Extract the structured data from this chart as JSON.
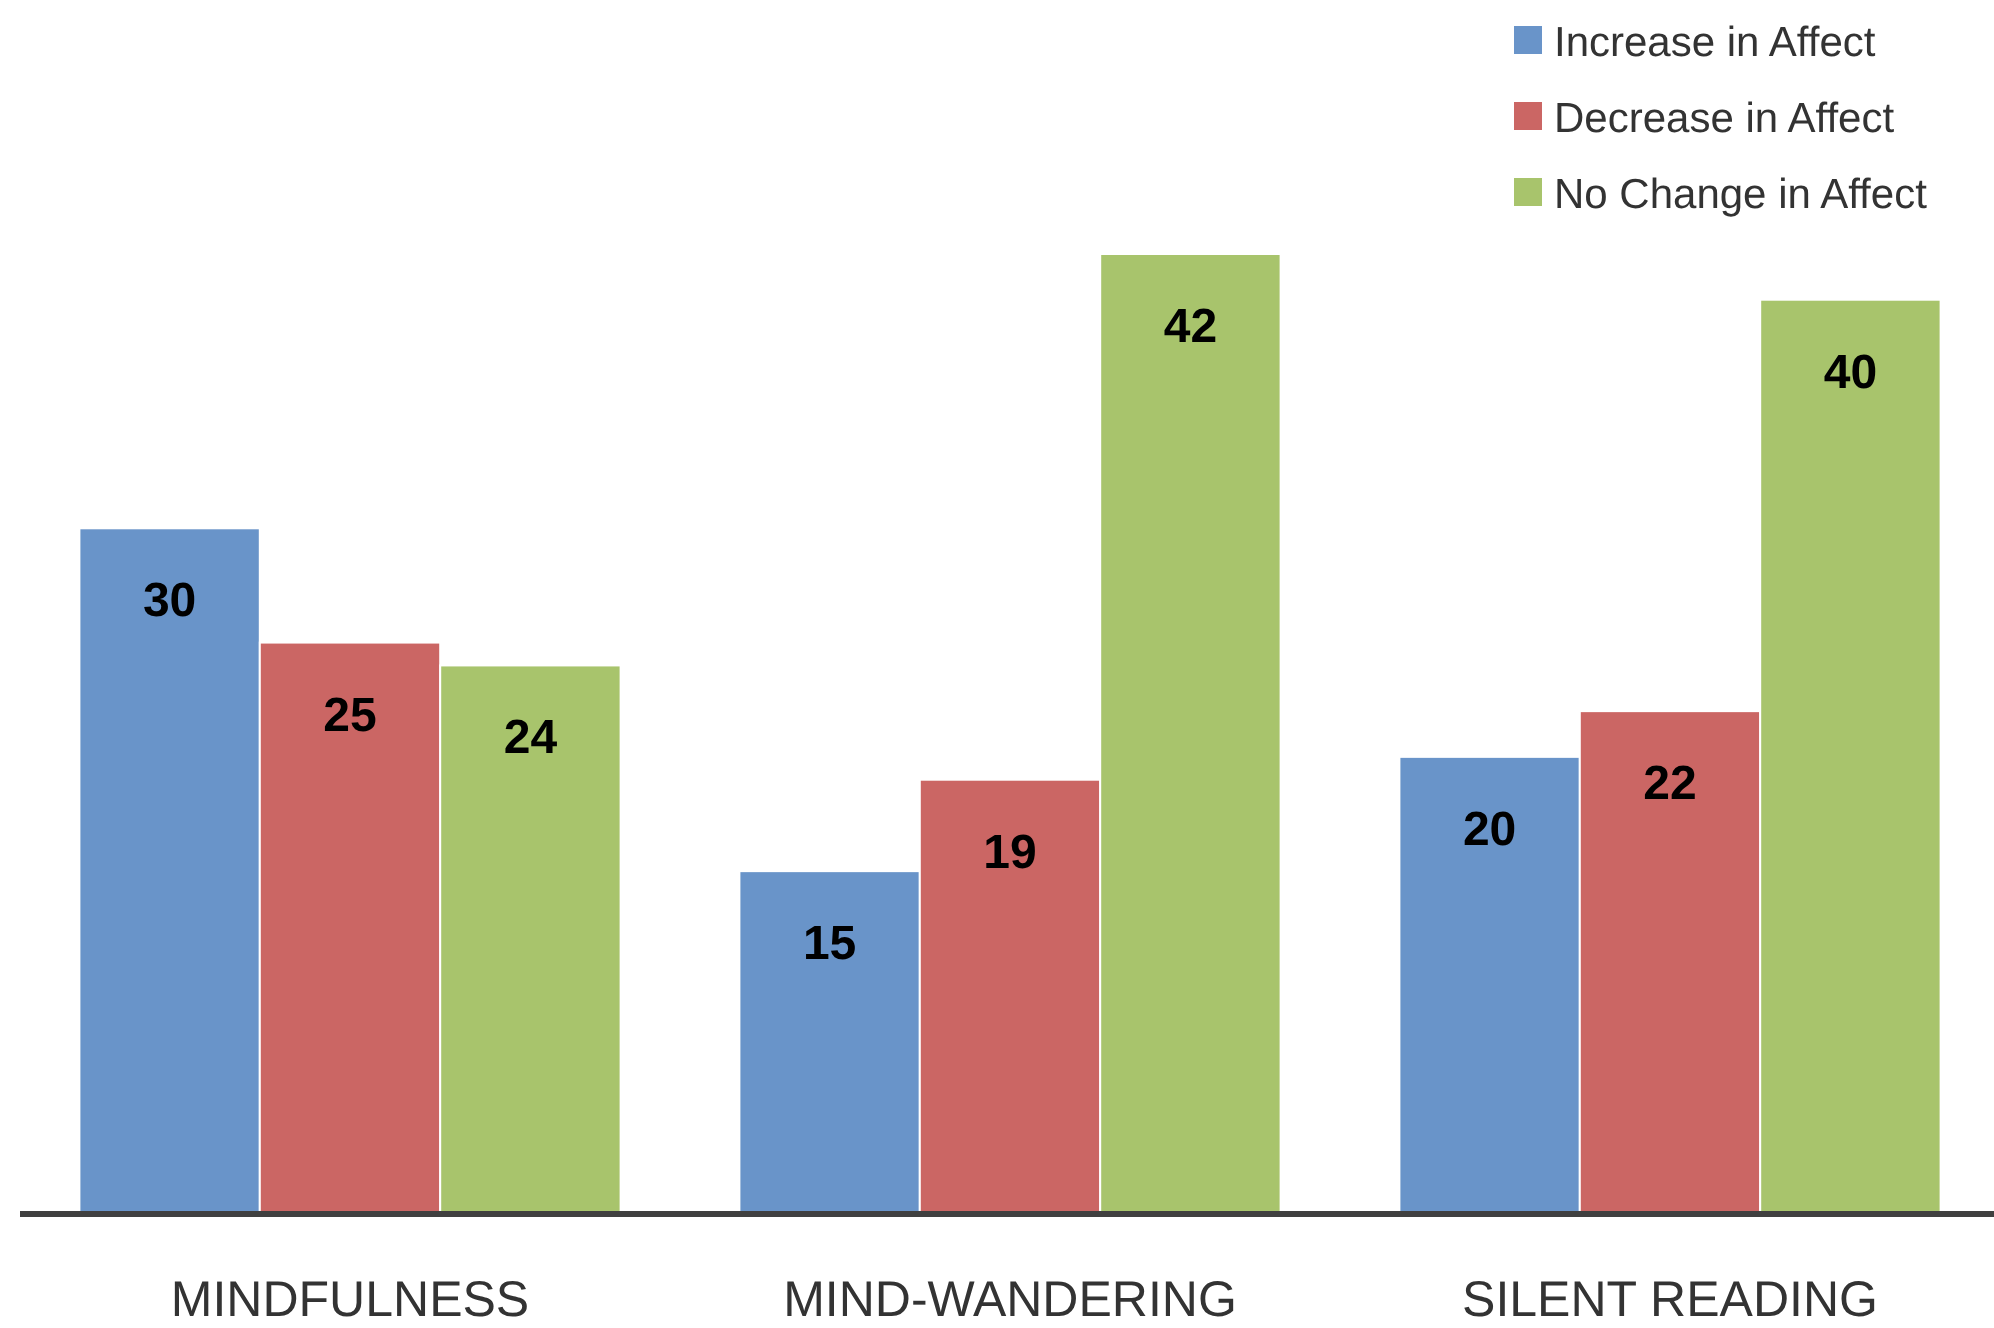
{
  "chart_data": {
    "type": "bar",
    "categories": [
      "MINDFULNESS",
      "MIND-WANDERING",
      "SILENT READING"
    ],
    "series": [
      {
        "name": "Increase in Affect",
        "color": "#6994c9",
        "values": [
          30,
          15,
          20
        ]
      },
      {
        "name": "Decrease in Affect",
        "color": "#cb6664",
        "values": [
          25,
          19,
          22
        ]
      },
      {
        "name": "No Change in Affect",
        "color": "#a8c46c",
        "values": [
          24,
          42,
          40
        ]
      }
    ],
    "data_labels": true,
    "legend": "top right"
  }
}
